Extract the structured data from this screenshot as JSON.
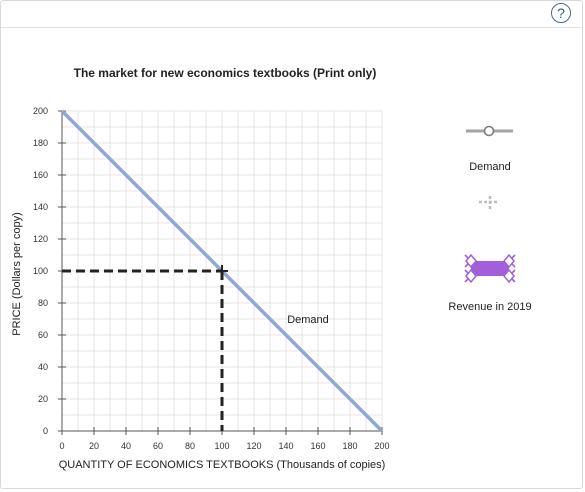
{
  "help_label": "?",
  "chart_data": {
    "type": "line",
    "title": "The market for new economics textbooks (Print only)",
    "xlabel": "QUANTITY OF ECONOMICS TEXTBOOKS (Thousands of copies)",
    "ylabel": "PRICE (Dollars per copy)",
    "xlim": [
      0,
      200
    ],
    "ylim": [
      0,
      200
    ],
    "xticks": [
      0,
      20,
      40,
      60,
      80,
      100,
      120,
      140,
      160,
      180,
      200
    ],
    "yticks": [
      0,
      20,
      40,
      60,
      80,
      100,
      120,
      140,
      160,
      180,
      200
    ],
    "grid": true,
    "series": [
      {
        "name": "Demand",
        "x": [
          0,
          200
        ],
        "y": [
          200,
          0
        ],
        "color": "#8ea8d4"
      }
    ],
    "annotations": [
      {
        "text": "Demand",
        "x": 140,
        "y": 50
      }
    ],
    "point": {
      "x": 100,
      "y": 100
    },
    "legend": {
      "placement": "right",
      "items": [
        {
          "label": "Demand",
          "color": "#a3a3a3"
        },
        {
          "label": "Revenue in 2019",
          "color": "#a35fd9"
        }
      ]
    }
  }
}
